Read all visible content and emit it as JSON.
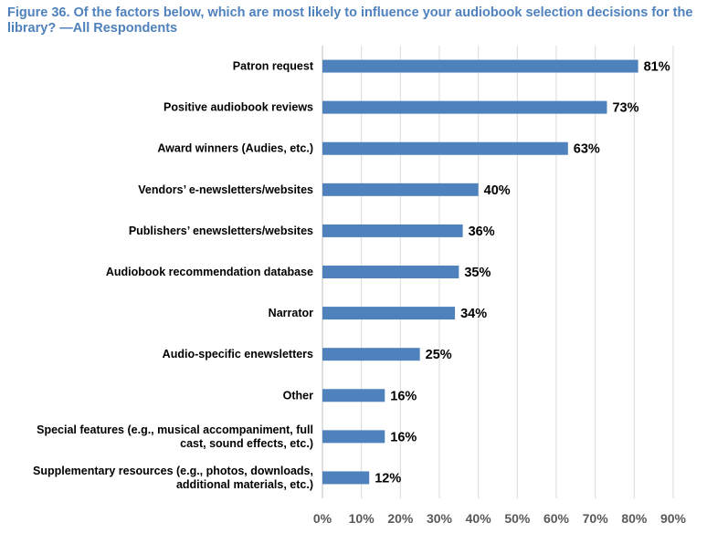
{
  "chart_data": {
    "type": "bar",
    "orientation": "horizontal",
    "title": "Figure 36. Of the factors below, which are most likely to influence your audiobook selection decisions for the library? —All Respondents",
    "xlabel": "",
    "ylabel": "",
    "categories": [
      "Patron request",
      "Positive audiobook reviews",
      "Award winners (Audies, etc.)",
      "Vendors’ e-newsletters/websites",
      "Publishers’ enewsletters/websites",
      "Audiobook recommendation database",
      "Narrator",
      "Audio-specific enewsletters",
      "Other",
      "Special features (e.g., musical accompaniment, full cast, sound effects, etc.)",
      "Supplementary resources (e.g., photos, downloads, additional materials, etc.)"
    ],
    "category_lines": [
      [
        "Patron request"
      ],
      [
        "Positive audiobook reviews"
      ],
      [
        "Award winners (Audies, etc.)"
      ],
      [
        "Vendors’ e-newsletters/websites"
      ],
      [
        "Publishers’ enewsletters/websites"
      ],
      [
        "Audiobook recommendation database"
      ],
      [
        "Narrator"
      ],
      [
        "Audio-specific enewsletters"
      ],
      [
        "Other"
      ],
      [
        "Special features (e.g., musical accompaniment, full",
        "cast, sound effects, etc.)"
      ],
      [
        "Supplementary resources (e.g., photos, downloads,",
        "additional materials, etc.)"
      ]
    ],
    "values": [
      81,
      73,
      63,
      40,
      36,
      35,
      34,
      25,
      16,
      16,
      12
    ],
    "value_labels": [
      "81%",
      "73%",
      "63%",
      "40%",
      "36%",
      "35%",
      "34%",
      "25%",
      "16%",
      "16%",
      "12%"
    ],
    "xlim": [
      0,
      90
    ],
    "ticks": [
      0,
      10,
      20,
      30,
      40,
      50,
      60,
      70,
      80,
      90
    ],
    "tick_labels": [
      "0%",
      "10%",
      "20%",
      "30%",
      "40%",
      "50%",
      "60%",
      "70%",
      "80%",
      "90%"
    ],
    "grid": true,
    "legend": "none",
    "colors": {
      "bar": "#4f81bd",
      "grid": "#d9d9d9",
      "title": "#4f81bd"
    }
  }
}
